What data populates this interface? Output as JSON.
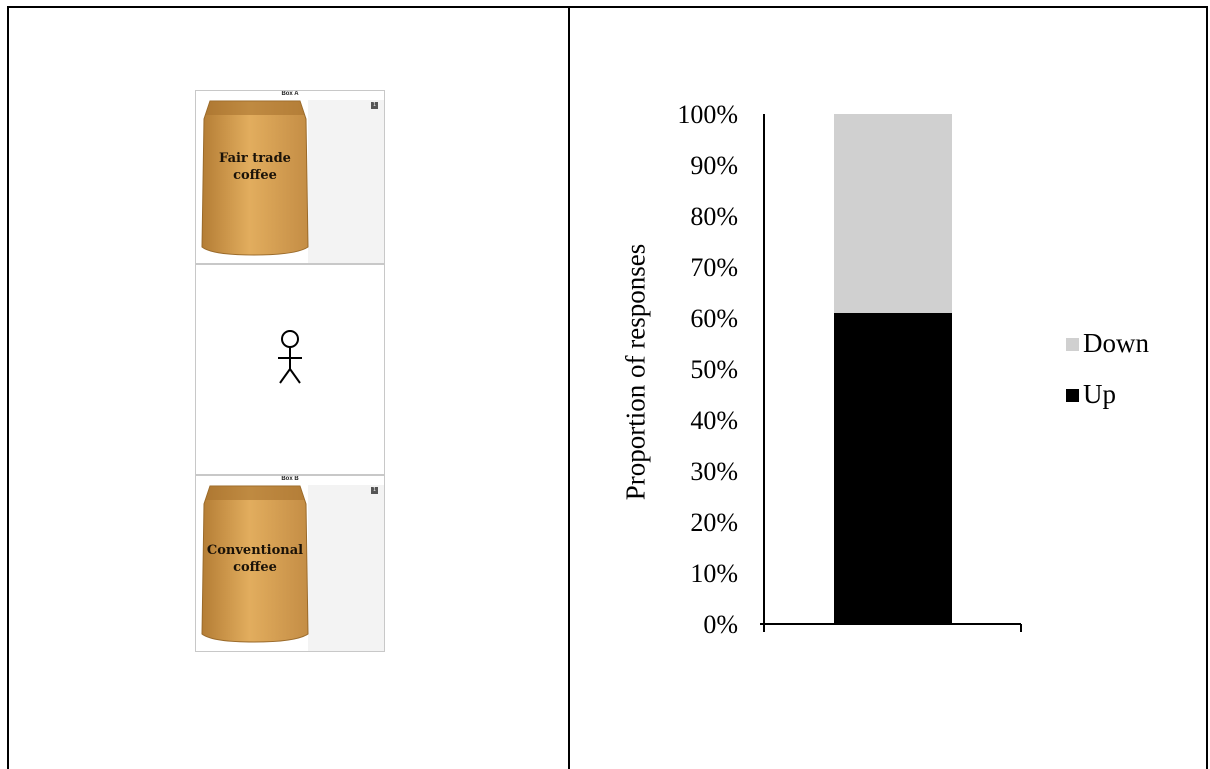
{
  "stimulus": {
    "box_a": {
      "label": "Box A",
      "badge": "1",
      "bag_line1": "Fair trade",
      "bag_line2": "coffee"
    },
    "box_b": {
      "label": "Box B",
      "badge": "1",
      "bag_line1": "Conventional",
      "bag_line2": "coffee"
    },
    "person_icon": "stick-figure-icon"
  },
  "chart_data": {
    "type": "bar",
    "stacked": true,
    "categories": [
      ""
    ],
    "series": [
      {
        "name": "Up",
        "values": [
          61
        ],
        "color": "#000000"
      },
      {
        "name": "Down",
        "values": [
          39
        ],
        "color": "#d0d0d0"
      }
    ],
    "ylabel": "Proportion of responses",
    "xlabel": "",
    "ylim": [
      0,
      100
    ],
    "yticks": [
      "0%",
      "10%",
      "20%",
      "30%",
      "40%",
      "50%",
      "60%",
      "70%",
      "80%",
      "90%",
      "100%"
    ],
    "legend": {
      "position": "right",
      "items": [
        "Down",
        "Up"
      ]
    },
    "grid": false
  }
}
